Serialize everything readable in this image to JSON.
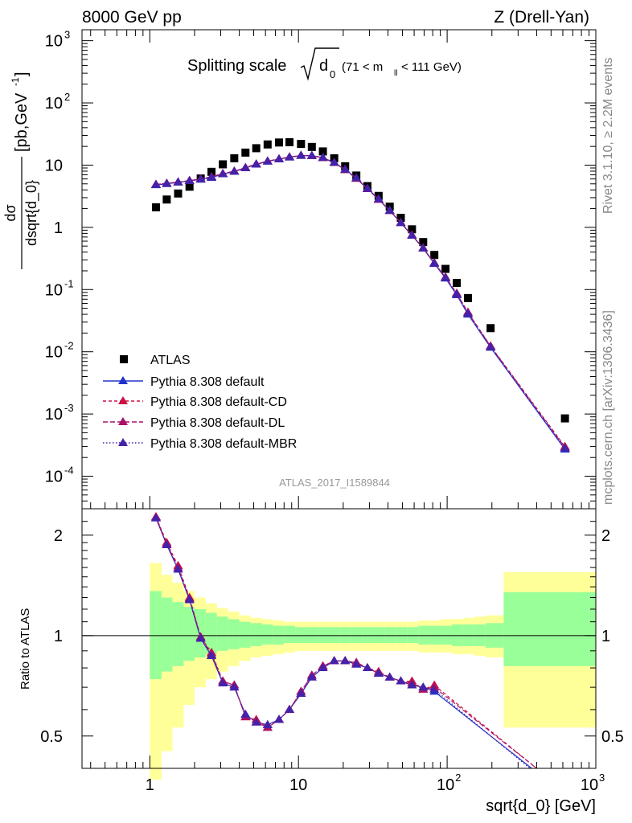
{
  "header": {
    "left": "8000 GeV pp",
    "right": "Z (Drell-Yan)"
  },
  "side_labels": {
    "rivet": "Rivet 3.1.10, ≥ 2.2M events",
    "mcplots": "mcplots.cern.ch [arXiv:1306.3436]"
  },
  "plot_title": {
    "main": "Splitting scale",
    "symbol": "d",
    "symbol_sub": "0",
    "range_pre": "(71 < m",
    "range_sub": "ll",
    "range_post": " < 111 GeV)"
  },
  "analysis_id": "ATLAS_2017_I1589844",
  "legend": {
    "atlas": "ATLAS",
    "default": "Pythia 8.308 default",
    "cd": "Pythia 8.308 default-CD",
    "dl": "Pythia 8.308 default-DL",
    "mbr": "Pythia 8.308 default-MBR"
  },
  "axes": {
    "ylabel_upper": "dσ/dsqrt{d_0} [pb,GeV⁻¹]",
    "ylabel_upper_num": "dσ",
    "ylabel_upper_den": "dsqrt{d_0}",
    "ylabel_upper_unit": "[pb,GeV",
    "ylabel_upper_unit_sup": "-1",
    "ylabel_upper_unit_close": "]",
    "ylabel_lower": "Ratio to ATLAS",
    "xlabel": "sqrt{d_0} [GeV]",
    "x_ticks": [
      "1",
      "10",
      "10",
      "2",
      "10",
      "3"
    ],
    "y_upper_ticks": [
      {
        "m": "10",
        "e": "3"
      },
      {
        "m": "10",
        "e": "2"
      },
      {
        "m": "10",
        "e": ""
      },
      {
        "m": "1",
        "e": ""
      },
      {
        "m": "10",
        "e": "-1"
      },
      {
        "m": "10",
        "e": "-2"
      },
      {
        "m": "10",
        "e": "-3"
      },
      {
        "m": "10",
        "e": "-4"
      }
    ],
    "y_lower_ticks": [
      "2",
      "1",
      "0.5"
    ]
  },
  "colors": {
    "atlas": "#000000",
    "default": "#2233cc",
    "cd": "#cc1144",
    "dl": "#aa1166",
    "mbr": "#4422aa",
    "band_inner": "#99ff99",
    "band_outer": "#ffff99"
  },
  "chart_data": {
    "type": "scatter",
    "x_scale": "log",
    "xlim": [
      0.35,
      1000
    ],
    "upper": {
      "y_scale": "log",
      "ylim": [
        3e-05,
        1500
      ],
      "x": [
        1.1,
        1.3,
        1.55,
        1.85,
        2.2,
        2.6,
        3.1,
        3.7,
        4.4,
        5.2,
        6.2,
        7.4,
        8.7,
        10.4,
        12.3,
        14.6,
        17.4,
        20.6,
        24.5,
        29.1,
        34.6,
        41.1,
        48.8,
        58,
        69,
        82,
        97.5,
        116,
        138,
        196,
        620
      ],
      "series": [
        {
          "name": "ATLAS",
          "values": [
            2.1,
            2.8,
            3.5,
            4.5,
            6.1,
            7.8,
            10.3,
            12.9,
            15.9,
            18.7,
            21.5,
            23.1,
            23.4,
            21.9,
            19.6,
            16.6,
            12.9,
            9.6,
            6.8,
            4.6,
            3.2,
            2.15,
            1.42,
            0.93,
            0.58,
            0.36,
            0.215,
            0.128,
            0.073,
            0.024,
            0.00085
          ]
        },
        {
          "name": "Pythia 8.308 default",
          "values": [
            4.8,
            5.0,
            5.3,
            5.6,
            5.9,
            6.3,
            7.2,
            7.9,
            9.0,
            10.3,
            11.5,
            12.5,
            13.4,
            14.2,
            14.2,
            13.2,
            11.0,
            8.5,
            6.2,
            4.2,
            2.85,
            1.86,
            1.18,
            0.74,
            0.46,
            0.26,
            0.152,
            0.082,
            0.04,
            0.0117,
            0.00027
          ]
        },
        {
          "name": "Pythia 8.308 default-CD",
          "values": [
            4.9,
            5.1,
            5.35,
            5.65,
            6.0,
            6.5,
            7.3,
            8.0,
            9.1,
            10.4,
            11.6,
            12.6,
            13.5,
            14.3,
            14.1,
            13.1,
            10.9,
            8.4,
            6.1,
            4.15,
            2.8,
            1.85,
            1.19,
            0.75,
            0.465,
            0.268,
            0.158,
            0.087,
            0.043,
            0.0124,
            0.0003
          ]
        },
        {
          "name": "Pythia 8.308 default-DL",
          "values": [
            4.9,
            5.1,
            5.35,
            5.65,
            6.0,
            6.5,
            7.3,
            8.0,
            9.1,
            10.4,
            11.6,
            12.6,
            13.5,
            14.3,
            14.1,
            13.1,
            10.9,
            8.4,
            6.1,
            4.15,
            2.8,
            1.85,
            1.19,
            0.75,
            0.465,
            0.268,
            0.158,
            0.087,
            0.043,
            0.0122,
            0.00029
          ]
        },
        {
          "name": "Pythia 8.308 default-MBR",
          "values": [
            4.85,
            5.05,
            5.3,
            5.6,
            5.95,
            6.4,
            7.2,
            7.9,
            9.0,
            10.3,
            11.5,
            12.5,
            13.4,
            14.2,
            14.2,
            13.2,
            11.0,
            8.5,
            6.2,
            4.2,
            2.85,
            1.86,
            1.18,
            0.74,
            0.46,
            0.265,
            0.154,
            0.084,
            0.041,
            0.0119,
            0.00028
          ]
        }
      ]
    },
    "lower": {
      "y_scale": "log",
      "ylim": [
        0.4,
        2.4
      ],
      "x": [
        1.1,
        1.3,
        1.55,
        1.85,
        2.2,
        2.6,
        3.1,
        3.7,
        4.4,
        5.2,
        6.2,
        7.4,
        8.7,
        10.4,
        12.3,
        14.6,
        17.4,
        20.6,
        24.5,
        29.1,
        34.6,
        41.1,
        48.8,
        58,
        69,
        82
      ],
      "series": [
        {
          "name": "Pythia 8.308 default",
          "values": [
            2.25,
            1.87,
            1.58,
            1.28,
            0.98,
            0.87,
            0.72,
            0.7,
            0.58,
            0.55,
            0.54,
            0.56,
            0.6,
            0.67,
            0.75,
            0.8,
            0.84,
            0.84,
            0.82,
            0.8,
            0.77,
            0.75,
            0.73,
            0.71,
            0.7,
            0.68
          ]
        },
        {
          "name": "Pythia 8.308 default-CD",
          "values": [
            2.27,
            1.9,
            1.62,
            1.3,
            0.99,
            0.89,
            0.73,
            0.71,
            0.57,
            0.56,
            0.53,
            0.56,
            0.6,
            0.68,
            0.76,
            0.81,
            0.84,
            0.84,
            0.83,
            0.8,
            0.78,
            0.75,
            0.73,
            0.73,
            0.69,
            0.71
          ]
        },
        {
          "name": "Pythia 8.308 default-DL",
          "values": [
            2.26,
            1.88,
            1.6,
            1.29,
            0.99,
            0.88,
            0.73,
            0.71,
            0.57,
            0.55,
            0.53,
            0.56,
            0.6,
            0.68,
            0.76,
            0.81,
            0.84,
            0.84,
            0.83,
            0.8,
            0.77,
            0.75,
            0.73,
            0.72,
            0.69,
            0.7
          ]
        },
        {
          "name": "Pythia 8.308 default-MBR",
          "values": [
            2.25,
            1.87,
            1.58,
            1.28,
            0.98,
            0.87,
            0.72,
            0.7,
            0.58,
            0.55,
            0.54,
            0.56,
            0.6,
            0.67,
            0.75,
            0.8,
            0.84,
            0.84,
            0.82,
            0.8,
            0.77,
            0.75,
            0.73,
            0.71,
            0.7,
            0.69
          ]
        }
      ],
      "tail_lines": [
        {
          "name": "Pythia 8.308 default",
          "x": [
            82,
            370
          ],
          "y": [
            0.68,
            0.36
          ]
        },
        {
          "name": "Pythia 8.308 default-CD",
          "x": [
            82,
            400
          ],
          "y": [
            0.71,
            0.38
          ]
        },
        {
          "name": "Pythia 8.308 default-DL",
          "x": [
            82,
            400
          ],
          "y": [
            0.7,
            0.37
          ]
        },
        {
          "name": "Pythia 8.308 default-MBR",
          "x": [
            82,
            360
          ],
          "y": [
            0.69,
            0.36
          ]
        }
      ],
      "bands": {
        "edges": [
          1.0,
          1.2,
          1.42,
          1.69,
          2.0,
          2.38,
          2.83,
          3.36,
          4.0,
          4.76,
          5.66,
          6.73,
          8.0,
          9.5,
          11.3,
          13.5,
          16.0,
          19.0,
          22.6,
          26.9,
          32.0,
          38.0,
          45.2,
          53.8,
          64.0,
          76.1,
          90.5,
          107.6,
          128.0,
          152.0,
          181.0,
          240.0,
          1000.0
        ],
        "inner_hi": [
          1.36,
          1.3,
          1.26,
          1.22,
          1.2,
          1.17,
          1.14,
          1.12,
          1.1,
          1.09,
          1.08,
          1.07,
          1.07,
          1.06,
          1.06,
          1.06,
          1.06,
          1.06,
          1.06,
          1.06,
          1.06,
          1.06,
          1.06,
          1.06,
          1.07,
          1.07,
          1.07,
          1.08,
          1.08,
          1.08,
          1.09,
          1.35
        ],
        "inner_lo": [
          0.74,
          0.78,
          0.81,
          0.84,
          0.86,
          0.88,
          0.9,
          0.91,
          0.92,
          0.93,
          0.94,
          0.94,
          0.95,
          0.95,
          0.95,
          0.95,
          0.95,
          0.95,
          0.95,
          0.95,
          0.95,
          0.95,
          0.95,
          0.95,
          0.94,
          0.94,
          0.94,
          0.93,
          0.93,
          0.93,
          0.92,
          0.81
        ],
        "outer_hi": [
          1.65,
          1.52,
          1.44,
          1.36,
          1.3,
          1.25,
          1.21,
          1.18,
          1.15,
          1.13,
          1.12,
          1.11,
          1.1,
          1.1,
          1.1,
          1.1,
          1.1,
          1.1,
          1.1,
          1.1,
          1.1,
          1.1,
          1.1,
          1.1,
          1.11,
          1.11,
          1.12,
          1.12,
          1.13,
          1.14,
          1.15,
          1.55
        ],
        "outer_lo": [
          0.37,
          0.45,
          0.53,
          0.62,
          0.7,
          0.74,
          0.78,
          0.81,
          0.84,
          0.86,
          0.87,
          0.88,
          0.89,
          0.9,
          0.9,
          0.9,
          0.9,
          0.9,
          0.9,
          0.9,
          0.9,
          0.9,
          0.9,
          0.9,
          0.89,
          0.89,
          0.89,
          0.88,
          0.88,
          0.87,
          0.86,
          0.53
        ]
      }
    }
  }
}
